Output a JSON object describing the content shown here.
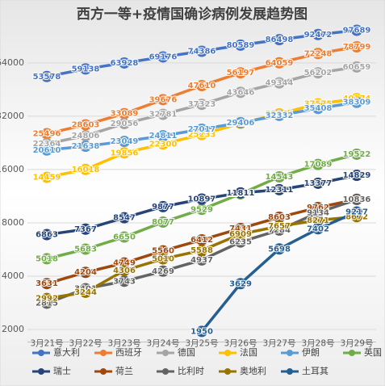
{
  "chart_data": {
    "type": "line",
    "title": "西方一等+疫情国确诊病例发展趋势图",
    "categories": [
      "3月21号",
      "3月22号",
      "3月23号",
      "3月24号",
      "3月25号",
      "3月26号",
      "3月27号",
      "3月28号",
      "3月29号"
    ],
    "log_scale": true,
    "grid": true,
    "legend": "bottom",
    "ylim": [
      1700,
      108000
    ],
    "yticks": [
      2000,
      4000,
      8000,
      16000,
      32000,
      64000
    ],
    "series": [
      {
        "name": "意大利",
        "color": "#4472c4",
        "values": [
          53578,
          59138,
          63928,
          69176,
          74386,
          80589,
          86498,
          92472,
          97689
        ]
      },
      {
        "name": "西班牙",
        "color": "#ed7d31",
        "values": [
          25496,
          28603,
          33089,
          39676,
          47610,
          56197,
          64059,
          72248,
          78799
        ]
      },
      {
        "name": "德国",
        "color": "#a5a5a5",
        "values": [
          22364,
          24806,
          29056,
          32781,
          37323,
          43646,
          49344,
          56202,
          60659
        ]
      },
      {
        "name": "法国",
        "color": "#ffc000",
        "values": [
          14459,
          16018,
          19856,
          22300,
          25233,
          29155,
          32964,
          37575,
          40174
        ]
      },
      {
        "name": "伊朗",
        "color": "#5b9bd5",
        "values": [
          20610,
          21638,
          23049,
          24811,
          27017,
          29406,
          32332,
          35408,
          38309
        ]
      },
      {
        "name": "英国",
        "color": "#70ad47",
        "values": [
          5018,
          5683,
          6650,
          8077,
          9529,
          11658,
          14543,
          17089,
          19522
        ]
      },
      {
        "name": "瑞士",
        "color": "#264478",
        "values": [
          6863,
          7367,
          8547,
          9877,
          10897,
          11811,
          12311,
          13377,
          14829
        ]
      },
      {
        "name": "荷兰",
        "color": "#9e480e",
        "values": [
          3631,
          4204,
          4749,
          5560,
          6412,
          7431,
          8603,
          9762,
          10866
        ]
      },
      {
        "name": "比利时",
        "color": "#636363",
        "values": [
          2815,
          3401,
          3743,
          4269,
          4937,
          6235,
          7284,
          9134,
          10836
        ]
      },
      {
        "name": "奥地利",
        "color": "#997300",
        "values": [
          2992,
          3244,
          4306,
          5010,
          5588,
          6909,
          7657,
          8271,
          8672
        ]
      },
      {
        "name": "土耳其",
        "color": "#255e91",
        "values": [
          null,
          null,
          null,
          null,
          1950,
          3629,
          5698,
          7402,
          9217
        ]
      }
    ]
  }
}
